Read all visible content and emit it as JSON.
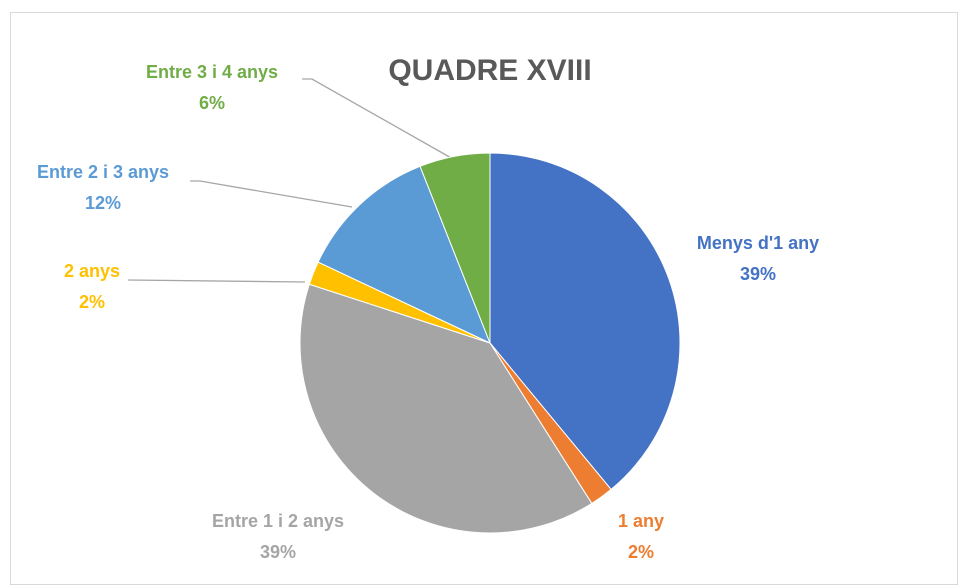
{
  "chart_data": {
    "type": "pie",
    "title": "QUADRE XVIII",
    "categories": [
      "Menys d'1 any",
      "1 any",
      "Entre 1 i 2 anys",
      "2 anys",
      "Entre 2 i 3 anys",
      "Entre 3 i 4 anys"
    ],
    "values": [
      39,
      2,
      39,
      2,
      12,
      6
    ],
    "value_labels": [
      "39%",
      "2%",
      "39%",
      "2%",
      "12%",
      "6%"
    ],
    "colors": [
      "#4472c4",
      "#ed7d31",
      "#a5a5a5",
      "#ffc000",
      "#5b9bd5",
      "#70ad47"
    ]
  }
}
